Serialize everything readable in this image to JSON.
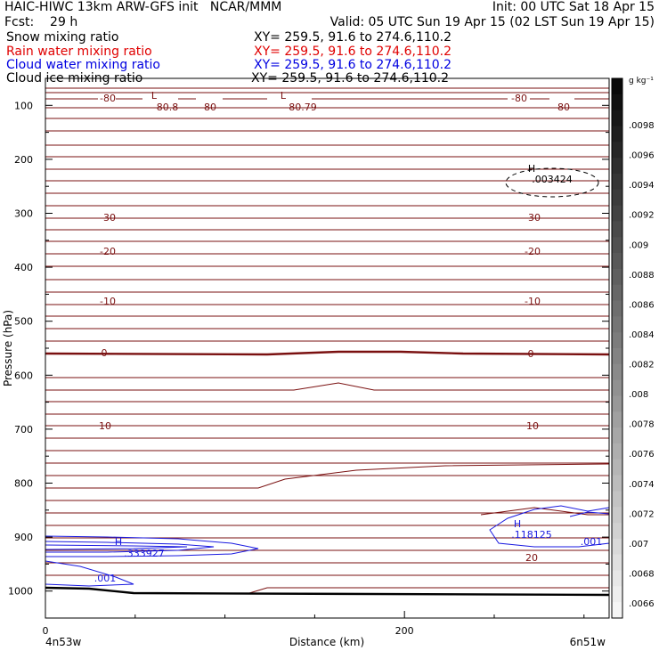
{
  "header": {
    "line1_left": "HAIC-HIWC 13km ARW-GFS init   NCAR/MMM",
    "line1_right": "Init: 00 UTC Sat 18 Apr 15",
    "line2_left": "Fcst:    29 h",
    "line2_right": "Valid: 05 UTC Sun 19 Apr 15 (02 LST Sun 19 Apr 15)",
    "fields": [
      {
        "name": "Snow mixing ratio",
        "xy": "XY= 259.5, 91.6 to 274.6,110.2",
        "color": "#000000"
      },
      {
        "name": "Rain water mixing ratio",
        "xy": "XY= 259.5, 91.6 to 274.6,110.2",
        "color": "#e00000"
      },
      {
        "name": "Cloud water mixing ratio",
        "xy": "XY= 259.5, 91.6 to 274.6,110.2",
        "color": "#0000e0"
      },
      {
        "name": "Cloud ice mixing ratio",
        "xy": "XY= 259.5, 91.6 to 274.6,110.2",
        "color": "#000000"
      }
    ]
  },
  "chart_data": {
    "type": "contour",
    "xlabel": "Distance (km)",
    "ylabel": "Pressure (hPa)",
    "xlim": [
      0,
      314
    ],
    "ylim": [
      1050,
      50
    ],
    "x_ticks": [
      0,
      200
    ],
    "y_ticks": [
      100,
      200,
      300,
      400,
      500,
      600,
      700,
      800,
      900,
      1000
    ],
    "x_left_label": "4n53w",
    "x_right_label": "6n51w",
    "temperature_contours": [
      -80,
      -70,
      -60,
      -50,
      -40,
      -30,
      -20,
      -10,
      0,
      10,
      20
    ],
    "temperature_labels": [
      "-80",
      "-30",
      "-20",
      "-10",
      "0",
      "10",
      "20"
    ],
    "low_markers": [
      {
        "label": "L",
        "value": "-80.8"
      },
      {
        "label": "L",
        "value": "-80.79"
      }
    ],
    "cloud_ice_max": {
      "label": "H",
      "value": ".003424"
    },
    "cloud_water_max": [
      {
        "label": "H",
        "value": ".333927"
      },
      {
        "label": "H",
        "value": ".118125"
      }
    ],
    "cloud_water_labels": [
      ".001",
      ".001"
    ],
    "colorbar": {
      "unit": "g kg⁻¹",
      "ticks": [
        ".0098",
        ".0096",
        ".0094",
        ".0092",
        ".009",
        ".0088",
        ".0086",
        ".0084",
        ".0082",
        ".008",
        ".0078",
        ".0076",
        ".0074",
        ".0072",
        ".007",
        ".0068",
        ".0066"
      ]
    },
    "colors": {
      "temperature": "#7a1010",
      "cloud_water": "#1a1ae0",
      "terrain": "#000000"
    }
  }
}
